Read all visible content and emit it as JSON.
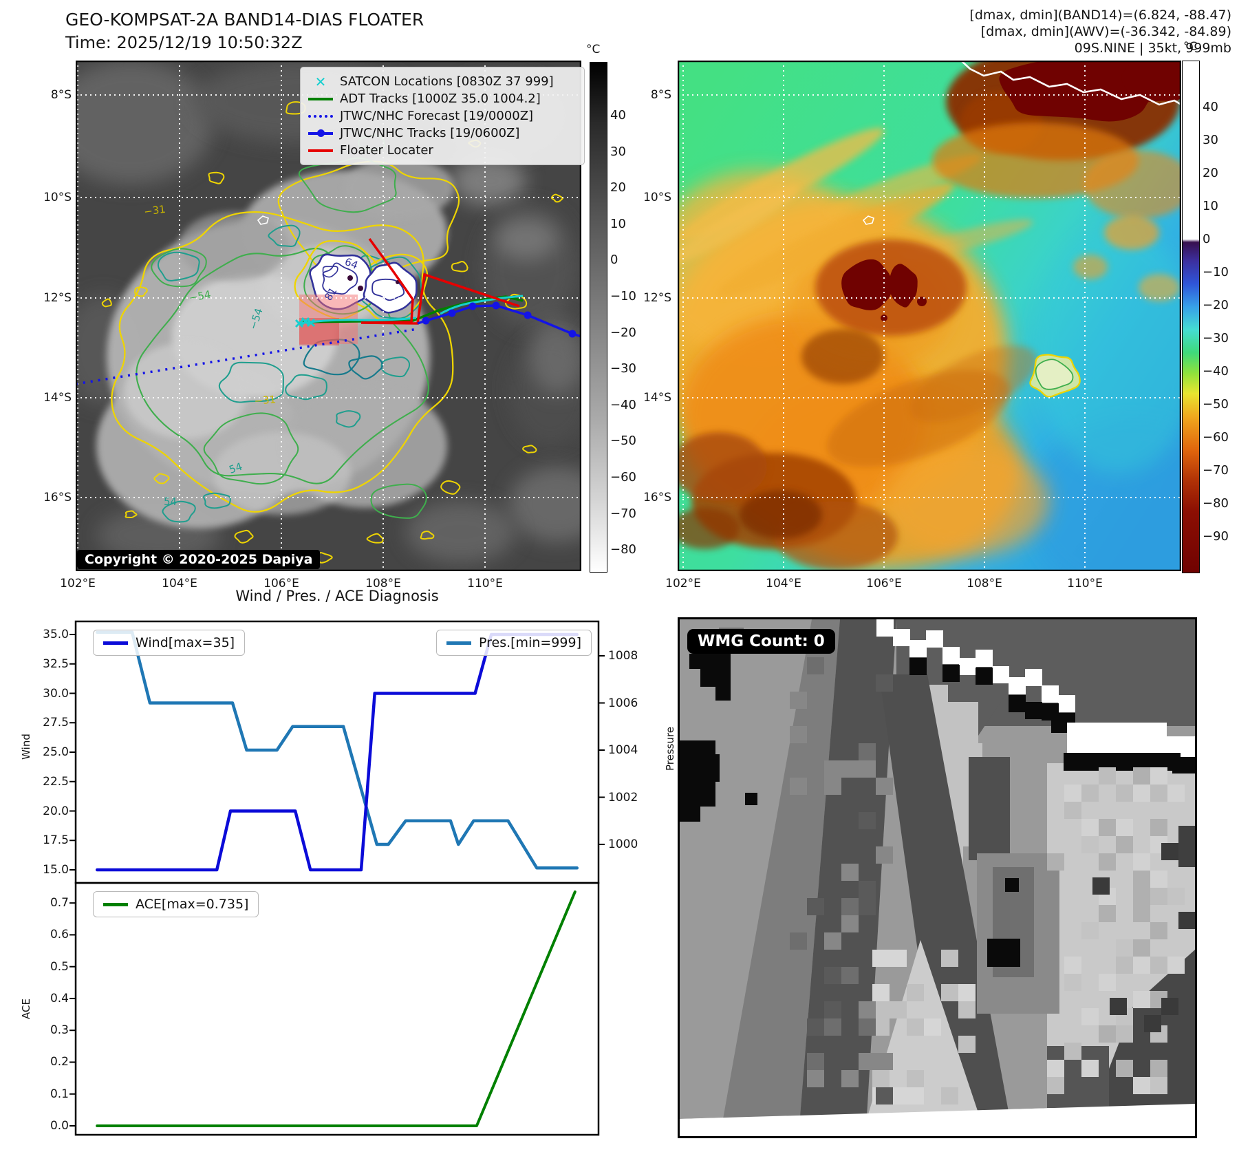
{
  "header": {
    "title_line1": "GEO-KOMPSAT-2A BAND14-DIAS FLOATER",
    "title_line2": "Time: 2025/12/19 10:50:32Z",
    "right_line1": "[dmax, dmin](BAND14)=(6.824, -88.47)",
    "right_line2": "[dmax, dmin](AWV)=(-36.342, -84.89)",
    "right_line3": "09S.NINE | 35kt, 999mb"
  },
  "left_panel": {
    "legend_items": [
      {
        "label": "SATCON Locations [0830Z 37 999]"
      },
      {
        "label": "ADT Tracks [1000Z 35.0 1004.2]"
      },
      {
        "label": "JTWC/NHC Forecast [19/0000Z]"
      },
      {
        "label": "JTWC/NHC Tracks [19/0600Z]"
      },
      {
        "label": "Floater Locater"
      }
    ],
    "copyright": "Copyright © 2020-2025 Dapiya",
    "lat_ticks": [
      "8°S",
      "10°S",
      "12°S",
      "14°S",
      "16°S"
    ],
    "lon_ticks": [
      "102°E",
      "104°E",
      "106°E",
      "108°E",
      "110°E"
    ],
    "colorbar_unit": "°C",
    "colorbar_ticks": [
      "40",
      "30",
      "20",
      "10",
      "0",
      "−10",
      "−20",
      "−30",
      "−40",
      "−50",
      "−60",
      "−70",
      "−80"
    ],
    "contour_labels": [
      "−31",
      "−54",
      "−54",
      "64",
      "81",
      "−31",
      "54",
      "54"
    ]
  },
  "right_panel": {
    "lat_ticks": [
      "8°S",
      "10°S",
      "12°S",
      "14°S",
      "16°S"
    ],
    "lon_ticks": [
      "102°E",
      "104°E",
      "106°E",
      "108°E",
      "110°E"
    ],
    "colorbar_unit": "°C",
    "colorbar_ticks": [
      "40",
      "30",
      "20",
      "10",
      "0",
      "−10",
      "−20",
      "−30",
      "−40",
      "−50",
      "−60",
      "−70",
      "−80",
      "−90"
    ]
  },
  "wmg_panel": {
    "count_label": "WMG Count: 0"
  },
  "diagnosis": {
    "title": "Wind / Pres. / ACE Diagnosis",
    "wind_axis_label": "Wind",
    "pressure_axis_label": "Pressure",
    "ace_axis_label": "ACE",
    "wind_ticks": [
      "15.0",
      "17.5",
      "20.0",
      "22.5",
      "25.0",
      "27.5",
      "30.0",
      "32.5",
      "35.0"
    ],
    "pressure_ticks": [
      "1000",
      "1002",
      "1004",
      "1006",
      "1008"
    ],
    "ace_ticks": [
      "0.0",
      "0.1",
      "0.2",
      "0.3",
      "0.4",
      "0.5",
      "0.6",
      "0.7"
    ],
    "wind_legend": "Wind[max=35]",
    "pres_legend": "Pres.[min=999]",
    "ace_legend": "ACE[max=0.735]"
  },
  "icons": {
    "satcon_marker": "✕"
  },
  "colors": {
    "wind": "#0b0bd8",
    "pressure": "#1f77b4",
    "ace": "#008000",
    "adt_track": "#008000",
    "jtwc_track": "#1414e6",
    "floater": "#e60000",
    "satcon": "#17cfcf",
    "contour_yellow": "#eed402",
    "contour_green": "#3fae4d",
    "contour_teal": "#1f9e8e",
    "contour_navy": "#32329a"
  },
  "chart_data": [
    {
      "type": "line",
      "title": "Wind / Pres. / ACE Diagnosis",
      "xlabel": "",
      "x_note": "time axis shown without tick labels, x given as fraction 0-1",
      "ylabel": "Wind",
      "ylim": [
        13.9,
        36.1
      ],
      "yticks": [
        15.0,
        17.5,
        20.0,
        22.5,
        25.0,
        27.5,
        30.0,
        32.5,
        35.0
      ],
      "y2label": "Pressure",
      "y2lim": [
        998.4,
        1009.5
      ],
      "y2ticks": [
        1000,
        1002,
        1004,
        1006,
        1008
      ],
      "grid": false,
      "legend_position": "upper-left and upper-right",
      "series": [
        {
          "name": "Wind[max=35]",
          "axis": "left",
          "color": "#0b0bd8",
          "points": [
            [
              0.041,
              15
            ],
            [
              0.27,
              15
            ],
            [
              0.296,
              20
            ],
            [
              0.42,
              20
            ],
            [
              0.449,
              15
            ],
            [
              0.546,
              15
            ],
            [
              0.572,
              30
            ],
            [
              0.764,
              30
            ],
            [
              0.795,
              35
            ],
            [
              0.959,
              35
            ]
          ]
        },
        {
          "name": "Pres.[min=999]",
          "axis": "right",
          "color": "#1f77b4",
          "points": [
            [
              0.041,
              1009
            ],
            [
              0.108,
              1009
            ],
            [
              0.142,
              1006
            ],
            [
              0.3,
              1006
            ],
            [
              0.327,
              1004
            ],
            [
              0.385,
              1004
            ],
            [
              0.415,
              1005
            ],
            [
              0.512,
              1005
            ],
            [
              0.576,
              1000
            ],
            [
              0.598,
              1000
            ],
            [
              0.631,
              1001
            ],
            [
              0.717,
              1001
            ],
            [
              0.732,
              1000
            ],
            [
              0.761,
              1001
            ],
            [
              0.827,
              1001
            ],
            [
              0.882,
              999
            ],
            [
              0.959,
              999
            ]
          ]
        }
      ]
    },
    {
      "type": "line",
      "title": "",
      "xlabel": "",
      "x_note": "x given as fraction 0-1, no tick labels",
      "ylabel": "ACE",
      "ylim": [
        -0.028,
        0.762
      ],
      "yticks": [
        0.0,
        0.1,
        0.2,
        0.3,
        0.4,
        0.5,
        0.6,
        0.7
      ],
      "grid": false,
      "legend_position": "upper-left",
      "series": [
        {
          "name": "ACE[max=0.735]",
          "color": "#008000",
          "points": [
            [
              0.041,
              0
            ],
            [
              0.767,
              0
            ],
            [
              0.955,
              0.735
            ]
          ]
        }
      ]
    }
  ]
}
